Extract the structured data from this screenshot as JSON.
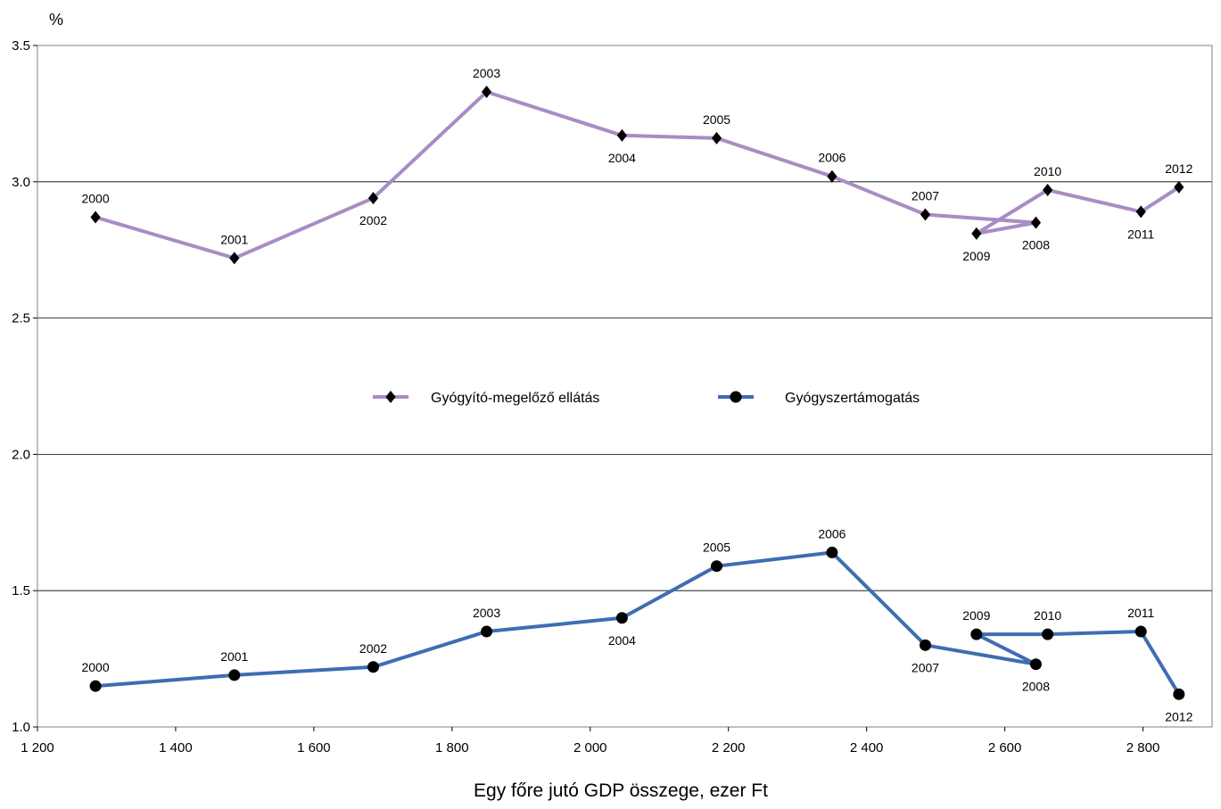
{
  "chart_data": {
    "type": "line",
    "title": "",
    "xlabel": "Egy főre jutó GDP összege, ezer Ft",
    "ylabel": "%",
    "xlim": [
      1200,
      2900
    ],
    "ylim": [
      1.0,
      3.5
    ],
    "xticks": [
      1200,
      1400,
      1600,
      1800,
      2000,
      2200,
      2400,
      2600,
      2800
    ],
    "xtick_labels": [
      "1 200",
      "1 400",
      "1 600",
      "1 800",
      "2 000",
      "2 200",
      "2 400",
      "2 600",
      "2 800"
    ],
    "yticks": [
      1.0,
      1.5,
      2.0,
      2.5,
      3.0,
      3.5
    ],
    "ytick_labels": [
      "1.0",
      "1.5",
      "2.0",
      "2.5",
      "3.0",
      "3.5"
    ],
    "grid": "horizontal",
    "legend_position": "center",
    "series": [
      {
        "name": "Gyógyító-megelőző ellátás",
        "color": "#a98cc4",
        "marker": "diamond",
        "points": [
          {
            "label": "2000",
            "x": 1284,
            "y": 2.87,
            "label_pos": "above"
          },
          {
            "label": "2001",
            "x": 1485,
            "y": 2.72,
            "label_pos": "above"
          },
          {
            "label": "2002",
            "x": 1686,
            "y": 2.94,
            "label_pos": "below"
          },
          {
            "label": "2003",
            "x": 1850,
            "y": 3.33,
            "label_pos": "above"
          },
          {
            "label": "2004",
            "x": 2046,
            "y": 3.17,
            "label_pos": "below"
          },
          {
            "label": "2005",
            "x": 2183,
            "y": 3.16,
            "label_pos": "above"
          },
          {
            "label": "2006",
            "x": 2350,
            "y": 3.02,
            "label_pos": "above"
          },
          {
            "label": "2007",
            "x": 2485,
            "y": 2.88,
            "label_pos": "above"
          },
          {
            "label": "2008",
            "x": 2645,
            "y": 2.85,
            "label_pos": "below"
          },
          {
            "label": "2009",
            "x": 2559,
            "y": 2.81,
            "label_pos": "below"
          },
          {
            "label": "2010",
            "x": 2662,
            "y": 2.97,
            "label_pos": "above"
          },
          {
            "label": "2011",
            "x": 2797,
            "y": 2.89,
            "label_pos": "below"
          },
          {
            "label": "2012",
            "x": 2852,
            "y": 2.98,
            "label_pos": "above"
          }
        ]
      },
      {
        "name": "Gyógyszertámogatás",
        "color": "#3e6db3",
        "marker": "circle",
        "points": [
          {
            "label": "2000",
            "x": 1284,
            "y": 1.15,
            "label_pos": "above"
          },
          {
            "label": "2001",
            "x": 1485,
            "y": 1.19,
            "label_pos": "above"
          },
          {
            "label": "2002",
            "x": 1686,
            "y": 1.22,
            "label_pos": "above"
          },
          {
            "label": "2003",
            "x": 1850,
            "y": 1.35,
            "label_pos": "above"
          },
          {
            "label": "2004",
            "x": 2046,
            "y": 1.4,
            "label_pos": "below"
          },
          {
            "label": "2005",
            "x": 2183,
            "y": 1.59,
            "label_pos": "above"
          },
          {
            "label": "2006",
            "x": 2350,
            "y": 1.64,
            "label_pos": "above"
          },
          {
            "label": "2007",
            "x": 2485,
            "y": 1.3,
            "label_pos": "below"
          },
          {
            "label": "2008",
            "x": 2645,
            "y": 1.23,
            "label_pos": "below"
          },
          {
            "label": "2009",
            "x": 2559,
            "y": 1.34,
            "label_pos": "above"
          },
          {
            "label": "2010",
            "x": 2662,
            "y": 1.34,
            "label_pos": "above"
          },
          {
            "label": "2011",
            "x": 2797,
            "y": 1.35,
            "label_pos": "above"
          },
          {
            "label": "2012",
            "x": 2852,
            "y": 1.12,
            "label_pos": "below"
          }
        ]
      }
    ]
  }
}
